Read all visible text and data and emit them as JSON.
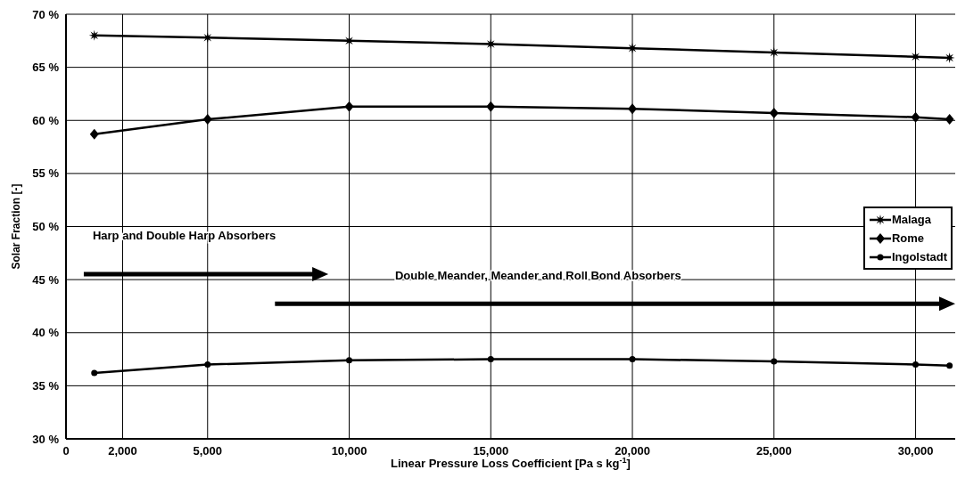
{
  "chart_data": {
    "type": "line",
    "xlabel": "Linear Pressure Loss Coefficient [Pa s kg$^{-1}$]",
    "ylabel": "Solar Fraction [-]",
    "x": [
      1000,
      5000,
      10000,
      15000,
      20000,
      25000,
      30000,
      31200
    ],
    "series": [
      {
        "name": "Malaga",
        "color": "#000000",
        "marker": "star",
        "values": [
          68.0,
          67.8,
          67.5,
          67.2,
          66.8,
          66.4,
          66.0,
          65.9
        ]
      },
      {
        "name": "Rome",
        "color": "#000000",
        "marker": "diamond",
        "values": [
          58.7,
          60.1,
          61.3,
          61.3,
          61.1,
          60.7,
          60.3,
          60.1
        ]
      },
      {
        "name": "Ingolstadt",
        "color": "#000000",
        "marker": "circle",
        "values": [
          36.2,
          37.0,
          37.4,
          37.5,
          37.5,
          37.3,
          37.0,
          36.9
        ]
      }
    ],
    "xlim": [
      0,
      31400
    ],
    "xticks": [
      0,
      {
        "value": 2000,
        "label": "2,000"
      },
      {
        "value": 5000,
        "label": "5,000"
      },
      {
        "value": 10000,
        "label": "10,000"
      },
      {
        "value": 15000,
        "label": "15,000"
      },
      {
        "value": 20000,
        "label": "20,000"
      },
      {
        "value": 25000,
        "label": "25,000"
      },
      {
        "value": 30000,
        "label": "30,000"
      }
    ],
    "ylim": [
      30,
      70
    ],
    "yticks": [
      {
        "value": 30,
        "label": "30 %"
      },
      {
        "value": 35,
        "label": "35 %"
      },
      {
        "value": 40,
        "label": "40 %"
      },
      {
        "value": 45,
        "label": "45 %"
      },
      {
        "value": 50,
        "label": "50 %"
      },
      {
        "value": 55,
        "label": "55 %"
      },
      {
        "value": 60,
        "label": "60 %"
      },
      {
        "value": 65,
        "label": "65 %"
      },
      {
        "value": 70,
        "label": "70 %"
      }
    ],
    "grid": true,
    "legend": "right",
    "line_style": "solid",
    "annotations": [
      "Harp and Double Harp Absorbers",
      "Double Meander, Meander and Roll Bond Absorbers"
    ]
  }
}
